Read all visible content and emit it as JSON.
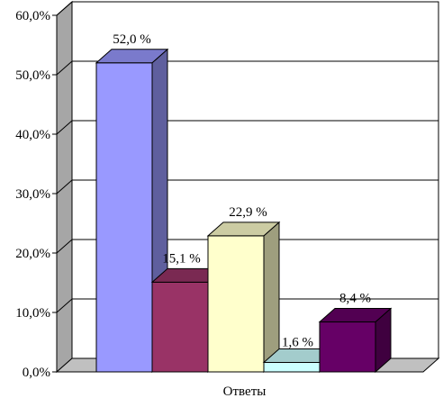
{
  "chart_data": {
    "type": "bar",
    "style": "3d-clustered-column",
    "title": "",
    "xlabel": "",
    "ylabel": "",
    "categories": [
      "Ответы"
    ],
    "series": [
      {
        "value": 52.0,
        "label": "52,0 %",
        "color": "#9999ff"
      },
      {
        "value": 15.1,
        "label": "15,1 %",
        "color": "#993366"
      },
      {
        "value": 22.9,
        "label": "22,9 %",
        "color": "#ffffcc"
      },
      {
        "value": 1.6,
        "label": "1,6 %",
        "color": "#ccffff"
      },
      {
        "value": 8.4,
        "label": "8,4 %",
        "color": "#660066"
      }
    ],
    "ylim": [
      0,
      60
    ],
    "yticks": [
      0,
      10,
      20,
      30,
      40,
      50,
      60
    ],
    "ytick_labels": [
      "0,0%",
      "10,0%",
      "20,0%",
      "30,0%",
      "40,0%",
      "50,0%",
      "60,0%"
    ],
    "grid": true,
    "legend": "none",
    "wall_color": "#ffffff",
    "side_wall_color": "#a6a6a6",
    "floor_color": "#c0c0c0"
  }
}
